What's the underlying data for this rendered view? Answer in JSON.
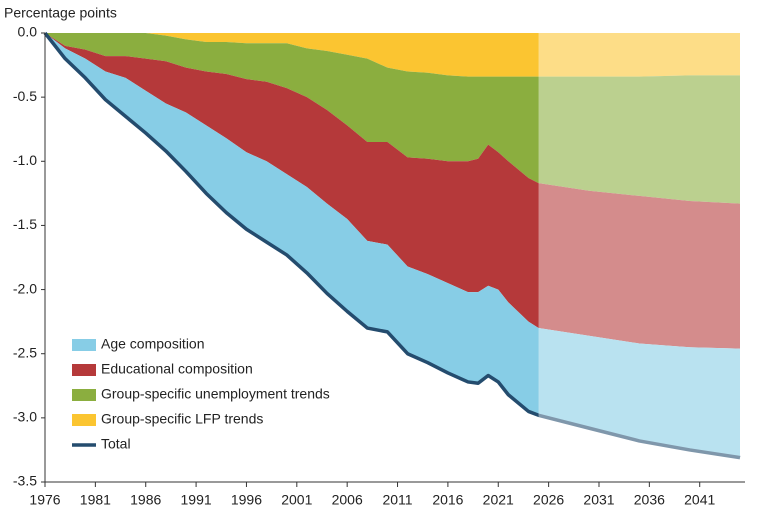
{
  "chart_data": {
    "type": "stacked_area",
    "y_axis_label": "Percentage points",
    "x": [
      1976,
      1978,
      1980,
      1982,
      1984,
      1986,
      1988,
      1990,
      1992,
      1994,
      1996,
      1998,
      2000,
      2002,
      2004,
      2006,
      2008,
      2010,
      2012,
      2014,
      2016,
      2018,
      2019,
      2020,
      2021,
      2022,
      2024,
      2025,
      2030,
      2035,
      2040,
      2045
    ],
    "series": [
      {
        "name": "Age composition",
        "color": "#87cde6",
        "values": [
          0,
          -0.08,
          -0.15,
          -0.22,
          -0.3,
          -0.33,
          -0.37,
          -0.46,
          -0.53,
          -0.58,
          -0.6,
          -0.63,
          -0.63,
          -0.67,
          -0.7,
          -0.72,
          -0.68,
          -0.68,
          -0.68,
          -0.69,
          -0.7,
          -0.7,
          -0.71,
          -0.7,
          -0.72,
          -0.72,
          -0.7,
          -0.68,
          -0.72,
          -0.76,
          -0.8,
          -0.85
        ]
      },
      {
        "name": "Educational composition",
        "color": "#b5393a",
        "values": [
          0,
          -0.02,
          -0.07,
          -0.12,
          -0.17,
          -0.25,
          -0.33,
          -0.35,
          -0.42,
          -0.5,
          -0.57,
          -0.62,
          -0.67,
          -0.7,
          -0.73,
          -0.73,
          -0.77,
          -0.8,
          -0.85,
          -0.9,
          -0.95,
          -1.02,
          -1.04,
          -1.1,
          -1.07,
          -1.1,
          -1.12,
          -1.13,
          -1.13,
          -1.15,
          -1.14,
          -1.13
        ]
      },
      {
        "name": "Group-specific unemployment trends",
        "color": "#8bae3f",
        "values": [
          0,
          -0.1,
          -0.13,
          -0.18,
          -0.18,
          -0.2,
          -0.2,
          -0.22,
          -0.23,
          -0.25,
          -0.28,
          -0.3,
          -0.35,
          -0.38,
          -0.46,
          -0.55,
          -0.65,
          -0.58,
          -0.67,
          -0.67,
          -0.67,
          -0.66,
          -0.64,
          -0.53,
          -0.59,
          -0.66,
          -0.79,
          -0.83,
          -0.89,
          -0.93,
          -0.98,
          -1.0
        ]
      },
      {
        "name": "Group-specific LFP trends",
        "color": "#fbc531",
        "values": [
          0,
          0,
          0,
          0,
          0,
          0,
          -0.02,
          -0.05,
          -0.07,
          -0.07,
          -0.08,
          -0.08,
          -0.08,
          -0.12,
          -0.14,
          -0.17,
          -0.2,
          -0.27,
          -0.3,
          -0.31,
          -0.33,
          -0.34,
          -0.34,
          -0.34,
          -0.34,
          -0.34,
          -0.34,
          -0.34,
          -0.34,
          -0.34,
          -0.33,
          -0.33
        ]
      },
      {
        "name": "Total",
        "color": "#244c6e",
        "kind": "line",
        "values": [
          0,
          -0.2,
          -0.35,
          -0.52,
          -0.65,
          -0.78,
          -0.92,
          -1.08,
          -1.25,
          -1.4,
          -1.53,
          -1.63,
          -1.73,
          -1.87,
          -2.03,
          -2.17,
          -2.3,
          -2.33,
          -2.5,
          -2.57,
          -2.65,
          -2.72,
          -2.73,
          -2.67,
          -2.72,
          -2.82,
          -2.95,
          -2.98,
          -3.08,
          -3.18,
          -3.25,
          -3.31
        ]
      }
    ],
    "projection_start": 2025,
    "xlim": [
      1976,
      2045
    ],
    "xticks": [
      1976,
      1981,
      1986,
      1991,
      1996,
      2001,
      2006,
      2011,
      2016,
      2021,
      2026,
      2031,
      2036,
      2041
    ],
    "ylim": [
      -3.5,
      0
    ],
    "yticks": [
      {
        "value": 0,
        "label": "0.0"
      },
      -0.5,
      {
        "value": -1,
        "label": "-1.0"
      },
      -1.5,
      {
        "value": -2,
        "label": "-2.0"
      },
      -2.5,
      {
        "value": -3,
        "label": "-3.0"
      },
      -3.5
    ],
    "legend": "lower left"
  }
}
